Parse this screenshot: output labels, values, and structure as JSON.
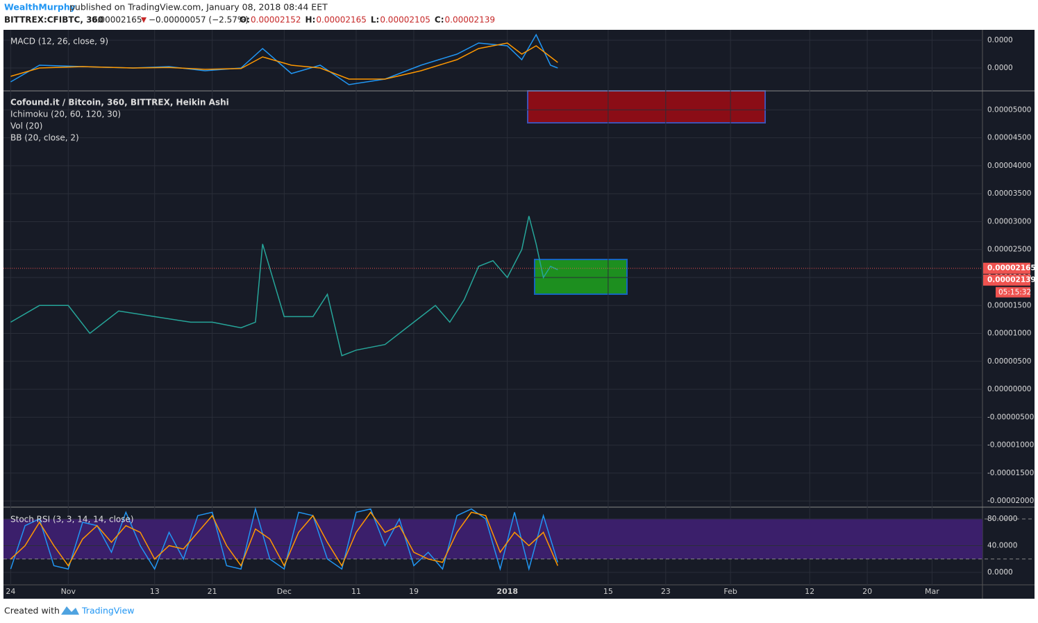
{
  "header": {
    "author": "WealthMurphy",
    "published": "published on TradingView.com, January 08, 2018 08:44 EET",
    "symbol": "BITTREX:CFIBTC, 360",
    "last": "0.00002165",
    "change": "−0.00000057 (−2.57%)",
    "ohlc": [
      {
        "label": "O:",
        "value": "0.00002152"
      },
      {
        "label": "H:",
        "value": "0.00002165"
      },
      {
        "label": "L:",
        "value": "0.00002105"
      },
      {
        "label": "C:",
        "value": "0.00002139"
      }
    ]
  },
  "footer": {
    "created": "Created with",
    "brand": "TradingView"
  },
  "chart_data": [
    {
      "type": "line",
      "title": "MACD (12, 26, close, 9)",
      "x": [
        "2017-10-24",
        "2017-10-28",
        "2017-11-03",
        "2017-11-10",
        "2017-11-15",
        "2017-11-20",
        "2017-11-25",
        "2017-11-28",
        "2017-12-02",
        "2017-12-06",
        "2017-12-10",
        "2017-12-15",
        "2017-12-20",
        "2017-12-25",
        "2017-12-28",
        "2018-01-01",
        "2018-01-03",
        "2018-01-05",
        "2018-01-07",
        "2018-01-08"
      ],
      "series": [
        {
          "color": "#2196f3",
          "values": [
            -5e-07,
            1e-07,
            5e-08,
            0,
            5e-08,
            -1e-07,
            0,
            7e-07,
            -2e-07,
            1e-07,
            -6e-07,
            -4e-07,
            1e-07,
            5e-07,
            9e-07,
            8e-07,
            3e-07,
            1.2e-06,
            1e-07,
            0
          ]
        },
        {
          "color": "#ff9800",
          "values": [
            -3e-07,
            0,
            5e-08,
            0,
            2e-08,
            -5e-08,
            -2e-08,
            4e-07,
            1e-07,
            0,
            -4e-07,
            -4e-07,
            -1e-07,
            3e-07,
            7e-07,
            9e-07,
            5e-07,
            8e-07,
            4e-07,
            2e-07
          ]
        }
      ],
      "ylim": [
        -8.25e-07,
        1.35e-06
      ],
      "yticks": [
        {
          "value": 1e-06,
          "label": "0.0000"
        },
        {
          "value": 0,
          "label": "0.0000"
        }
      ],
      "grid": true
    },
    {
      "type": "line",
      "legend": [
        "Cofound.it / Bitcoin, 360, BITTREX, Heikin Ashi",
        "Ichimoku (20, 60, 120, 30)",
        "Vol (20)",
        "BB (20, close, 2)"
      ],
      "x": [
        "2017-10-24",
        "2017-10-28",
        "2017-11-01",
        "2017-11-04",
        "2017-11-08",
        "2017-11-13",
        "2017-11-18",
        "2017-11-21",
        "2017-11-25",
        "2017-11-27",
        "2017-11-28",
        "2017-12-01",
        "2017-12-05",
        "2017-12-07",
        "2017-12-09",
        "2017-12-11",
        "2017-12-15",
        "2017-12-19",
        "2017-12-22",
        "2017-12-24",
        "2017-12-26",
        "2017-12-28",
        "2017-12-30",
        "2018-01-01",
        "2018-01-03",
        "2018-01-04",
        "2018-01-05",
        "2018-01-06",
        "2018-01-07",
        "2018-01-08"
      ],
      "series": [
        {
          "color": "#26a69a",
          "values": [
            1.2e-05,
            1.5e-05,
            1.5e-05,
            1e-05,
            1.4e-05,
            1.3e-05,
            1.2e-05,
            1.2e-05,
            1.1e-05,
            1.2e-05,
            2.6e-05,
            1.3e-05,
            1.3e-05,
            1.7e-05,
            6e-06,
            7e-06,
            8e-06,
            1.2e-05,
            1.5e-05,
            1.2e-05,
            1.6e-05,
            2.2e-05,
            2.3e-05,
            2e-05,
            2.5e-05,
            3.1e-05,
            2.6e-05,
            2e-05,
            2.2e-05,
            2.139e-05
          ]
        }
      ],
      "last_price": 2.165e-05,
      "close_price": 2.139e-05,
      "countdown": "05:15:32",
      "ylim": [
        -2.11e-05,
        5.34e-05
      ],
      "yticks": [
        {
          "value": 5e-05,
          "label": "0.00005000"
        },
        {
          "value": 4.5e-05,
          "label": "0.00004500"
        },
        {
          "value": 4e-05,
          "label": "0.00004000"
        },
        {
          "value": 3.5e-05,
          "label": "0.00003500"
        },
        {
          "value": 3e-05,
          "label": "0.00003000"
        },
        {
          "value": 2.5e-05,
          "label": "0.00002500"
        },
        {
          "value": 2e-05,
          "label": "0.00002000"
        },
        {
          "value": 1.5e-05,
          "label": "0.00001500"
        },
        {
          "value": 1e-05,
          "label": "0.00001000"
        },
        {
          "value": 5e-06,
          "label": "0.00000500"
        },
        {
          "value": 0,
          "label": "0.00000000"
        },
        {
          "value": -5e-06,
          "label": "-0.00000500"
        },
        {
          "value": -1e-05,
          "label": "-0.00001000"
        },
        {
          "value": -1.5e-05,
          "label": "-0.00001500"
        },
        {
          "value": -2e-05,
          "label": "-0.00002000"
        }
      ],
      "xlim": [
        "2017-10-23",
        "2018-03-08"
      ],
      "xticks": [
        {
          "value": "2017-10-24",
          "label": "24"
        },
        {
          "value": "2017-11-01",
          "label": "Nov"
        },
        {
          "value": "2017-11-13",
          "label": "13"
        },
        {
          "value": "2017-11-21",
          "label": "21"
        },
        {
          "value": "2017-12-01",
          "label": "Dec"
        },
        {
          "value": "2017-12-11",
          "label": "11"
        },
        {
          "value": "2017-12-19",
          "label": "19"
        },
        {
          "value": "2018-01-01",
          "label": "2018"
        },
        {
          "value": "2018-01-15",
          "label": "15"
        },
        {
          "value": "2018-01-23",
          "label": "23"
        },
        {
          "value": "2018-02-01",
          "label": "Feb"
        },
        {
          "value": "2018-02-12",
          "label": "12"
        },
        {
          "value": "2018-02-20",
          "label": "20"
        },
        {
          "value": "2018-03-01",
          "label": "Mar"
        }
      ],
      "grid": true
    },
    {
      "type": "line",
      "title": "Stoch RSI (3, 3, 14, 14, close)",
      "x": [
        "2017-10-24",
        "2017-10-26",
        "2017-10-28",
        "2017-10-30",
        "2017-11-01",
        "2017-11-03",
        "2017-11-05",
        "2017-11-07",
        "2017-11-09",
        "2017-11-11",
        "2017-11-13",
        "2017-11-15",
        "2017-11-17",
        "2017-11-19",
        "2017-11-21",
        "2017-11-23",
        "2017-11-25",
        "2017-11-27",
        "2017-11-29",
        "2017-12-01",
        "2017-12-03",
        "2017-12-05",
        "2017-12-07",
        "2017-12-09",
        "2017-12-11",
        "2017-12-13",
        "2017-12-15",
        "2017-12-17",
        "2017-12-19",
        "2017-12-21",
        "2017-12-23",
        "2017-12-25",
        "2017-12-27",
        "2017-12-29",
        "2017-12-31",
        "2018-01-02",
        "2018-01-04",
        "2018-01-06",
        "2018-01-08"
      ],
      "series": [
        {
          "color": "#2196f3",
          "values": [
            5,
            70,
            80,
            10,
            5,
            75,
            70,
            30,
            90,
            40,
            5,
            60,
            20,
            85,
            90,
            10,
            5,
            95,
            20,
            5,
            90,
            85,
            20,
            5,
            90,
            95,
            40,
            80,
            10,
            30,
            5,
            85,
            95,
            80,
            5,
            90,
            5,
            85,
            15
          ]
        },
        {
          "color": "#ff9800",
          "values": [
            20,
            40,
            75,
            40,
            10,
            50,
            70,
            45,
            70,
            60,
            20,
            40,
            35,
            60,
            85,
            40,
            10,
            65,
            50,
            10,
            60,
            85,
            45,
            10,
            60,
            90,
            60,
            70,
            30,
            20,
            15,
            60,
            90,
            85,
            30,
            60,
            40,
            60,
            10
          ]
        }
      ],
      "bands": [
        20,
        80
      ],
      "band_color": "#3b1f6b",
      "ylim": [
        -18.7,
        97.7
      ],
      "yticks": [
        {
          "value": 80,
          "label": "80.0000"
        },
        {
          "value": 40,
          "label": "40.0000"
        },
        {
          "value": 0,
          "label": "0.0000"
        }
      ],
      "grid": true
    }
  ]
}
